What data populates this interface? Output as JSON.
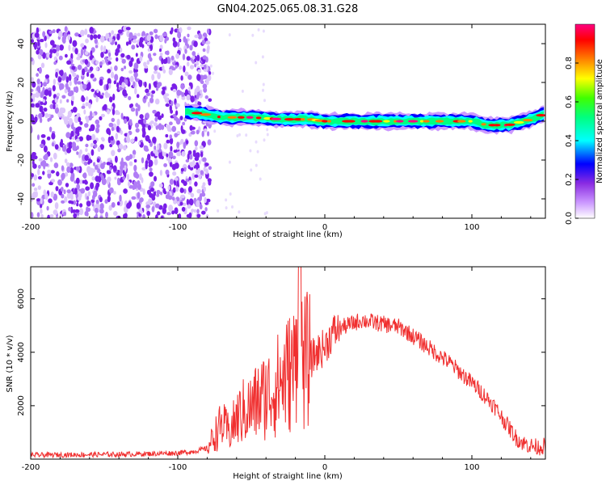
{
  "title": "GN04.2025.065.08.31.G28",
  "chart_data": [
    {
      "type": "heatmap",
      "xlabel": "Height of straight line (km)",
      "ylabel": "Frequency (Hz)",
      "xlim": [
        -200,
        150
      ],
      "ylim": [
        -50,
        50
      ],
      "xticks": [
        "-200",
        "-100",
        "0",
        "100"
      ],
      "yticks": [
        "40",
        "20",
        "0",
        "-20",
        "-40"
      ],
      "grid": false,
      "colorbar": {
        "label": "Normalized spectral amplitude",
        "range": [
          0,
          1
        ],
        "ticks": [
          "0.0",
          "0.2",
          "0.4",
          "0.6",
          "0.8"
        ],
        "colors": [
          "#ffffff",
          "#cc99ff",
          "#8a2be2",
          "#0000ff",
          "#00ffff",
          "#00ff80",
          "#40ff00",
          "#ffff00",
          "#ff8000",
          "#ff0000",
          "#ff0080"
        ]
      },
      "noise_region": {
        "x": [
          -200,
          -78
        ],
        "y": [
          -50,
          48
        ]
      },
      "ridge": [
        {
          "x": -95,
          "y": 5
        },
        {
          "x": -85,
          "y": 4
        },
        {
          "x": -70,
          "y": 2
        },
        {
          "x": -50,
          "y": 2
        },
        {
          "x": -30,
          "y": 1
        },
        {
          "x": -10,
          "y": 1
        },
        {
          "x": 0,
          "y": 0
        },
        {
          "x": 20,
          "y": 0
        },
        {
          "x": 40,
          "y": 0
        },
        {
          "x": 60,
          "y": 0
        },
        {
          "x": 80,
          "y": 0
        },
        {
          "x": 100,
          "y": 0
        },
        {
          "x": 110,
          "y": -2
        },
        {
          "x": 125,
          "y": -2
        },
        {
          "x": 140,
          "y": 1
        },
        {
          "x": 150,
          "y": 4
        }
      ]
    },
    {
      "type": "line",
      "xlabel": "Height of straight line (km)",
      "ylabel": "SNR (10 * v/v)",
      "xlim": [
        -200,
        150
      ],
      "ylim": [
        0,
        7200
      ],
      "xticks": [
        "-200",
        "-100",
        "0",
        "100"
      ],
      "yticks": [
        "6000",
        "4000",
        "2000"
      ],
      "grid": false,
      "color": "#f03030",
      "series": [
        {
          "x": [
            -200,
            -180,
            -160,
            -140,
            -120,
            -100,
            -90,
            -80,
            -75,
            -70,
            -65,
            -60,
            -55,
            -50,
            -45,
            -40,
            -35,
            -30,
            -25,
            -20,
            -18,
            -15,
            -10,
            -5,
            0,
            5,
            10,
            15,
            20,
            25,
            30,
            35,
            40,
            45,
            50,
            55,
            60,
            65,
            70,
            75,
            80,
            85,
            90,
            95,
            100,
            105,
            110,
            115,
            120,
            125,
            130,
            135,
            140,
            145,
            150
          ],
          "y": [
            150,
            160,
            170,
            180,
            200,
            230,
            280,
            400,
            900,
            1300,
            1000,
            1500,
            1800,
            1900,
            2200,
            2400,
            2600,
            2900,
            3200,
            3500,
            7100,
            3600,
            3700,
            4000,
            4200,
            4700,
            4900,
            5000,
            5100,
            5200,
            5150,
            5100,
            5050,
            5000,
            4950,
            4800,
            4600,
            4400,
            4200,
            4000,
            3800,
            3600,
            3350,
            3100,
            2850,
            2600,
            2300,
            2000,
            1600,
            1200,
            800,
            600,
            500,
            450,
            500
          ]
        }
      ]
    }
  ]
}
